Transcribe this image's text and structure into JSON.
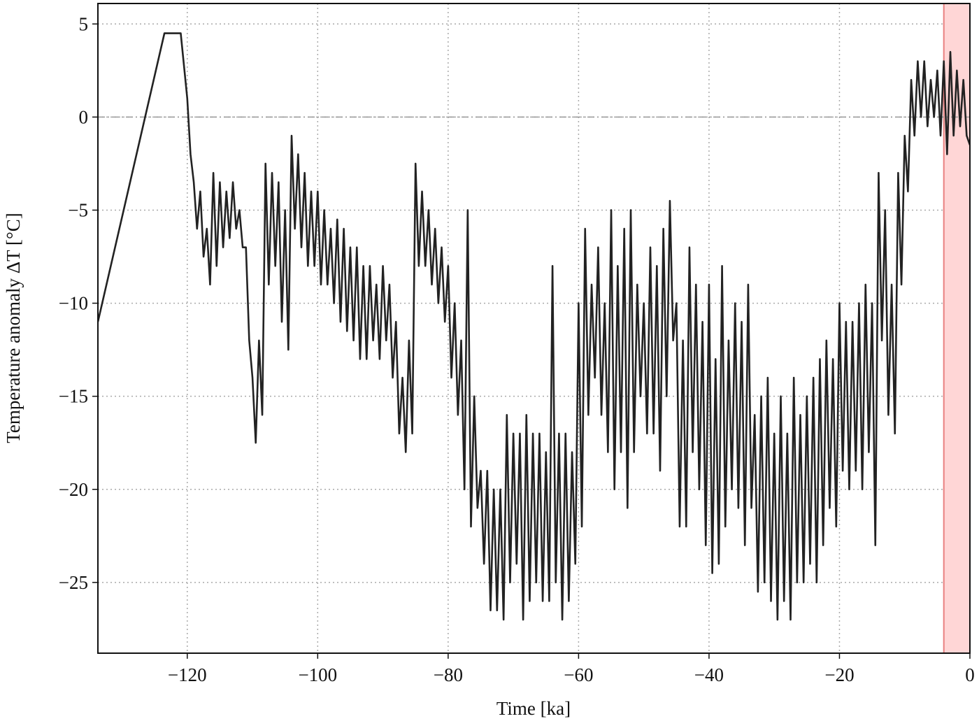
{
  "chart_data": {
    "type": "line",
    "xlabel": "Time [ka]",
    "ylabel": "Temperature anomaly ΔT [°C]",
    "xlim": [
      -133.7,
      0
    ],
    "ylim": [
      -28.8,
      6.1
    ],
    "xticks": [
      {
        "value": -120,
        "label": "−120"
      },
      {
        "value": -100,
        "label": "−100"
      },
      {
        "value": -80,
        "label": "−80"
      },
      {
        "value": -60,
        "label": "−60"
      },
      {
        "value": -40,
        "label": "−40"
      },
      {
        "value": -20,
        "label": "−20"
      },
      0
    ],
    "yticks": [
      5,
      0,
      {
        "value": -5,
        "label": "−5"
      },
      {
        "value": -10,
        "label": "−10"
      },
      {
        "value": -15,
        "label": "−15"
      },
      {
        "value": -20,
        "label": "−20"
      },
      {
        "value": -25,
        "label": "−25"
      }
    ],
    "grid": true,
    "hline": 0,
    "hline_color": "#999999",
    "highlight_span": [
      -4,
      0
    ],
    "highlight_color": "#ffd6d6",
    "highlight_edge_color": "#e88080",
    "series": [
      {
        "color": "#222222",
        "x": [
          -133.7,
          -123.5,
          -121,
          -120,
          -119.5,
          -119,
          -118.5,
          -118,
          -117.5,
          -117,
          -116.5,
          -116,
          -115.5,
          -115,
          -114.5,
          -114,
          -113.5,
          -113,
          -112.5,
          -112,
          -111.5,
          -111,
          -110.5,
          -110,
          -109.5,
          -109,
          -108.5,
          -108,
          -107.5,
          -107,
          -106.5,
          -106,
          -105.5,
          -105,
          -104.5,
          -104,
          -103.5,
          -103,
          -102.5,
          -102,
          -101.5,
          -101,
          -100.5,
          -100,
          -99.5,
          -99,
          -98.5,
          -98,
          -97.5,
          -97,
          -96.5,
          -96,
          -95.5,
          -95,
          -94.5,
          -94,
          -93.5,
          -93,
          -92.5,
          -92,
          -91.5,
          -91,
          -90.5,
          -90,
          -89.5,
          -89,
          -88.5,
          -88,
          -87.5,
          -87,
          -86.5,
          -86,
          -85.5,
          -85,
          -84.5,
          -84,
          -83.5,
          -83,
          -82.5,
          -82,
          -81.5,
          -81,
          -80.5,
          -80,
          -79.5,
          -79,
          -78.5,
          -78,
          -77.5,
          -77,
          -76.5,
          -76,
          -75.5,
          -75,
          -74.5,
          -74,
          -73.5,
          -73,
          -72.5,
          -72,
          -71.5,
          -71,
          -70.5,
          -70,
          -69.5,
          -69,
          -68.5,
          -68,
          -67.5,
          -67,
          -66.5,
          -66,
          -65.5,
          -65,
          -64.5,
          -64,
          -63.5,
          -63,
          -62.5,
          -62,
          -61.5,
          -61,
          -60.5,
          -60,
          -59.5,
          -59,
          -58.5,
          -58,
          -57.5,
          -57,
          -56.5,
          -56,
          -55.5,
          -55,
          -54.5,
          -54,
          -53.5,
          -53,
          -52.5,
          -52,
          -51.5,
          -51,
          -50.5,
          -50,
          -49.5,
          -49,
          -48.5,
          -48,
          -47.5,
          -47,
          -46.5,
          -46,
          -45.5,
          -45,
          -44.5,
          -44,
          -43.5,
          -43,
          -42.5,
          -42,
          -41.5,
          -41,
          -40.5,
          -40,
          -39.5,
          -39,
          -38.5,
          -38,
          -37.5,
          -37,
          -36.5,
          -36,
          -35.5,
          -35,
          -34.5,
          -34,
          -33.5,
          -33,
          -32.5,
          -32,
          -31.5,
          -31,
          -30.5,
          -30,
          -29.5,
          -29,
          -28.5,
          -28,
          -27.5,
          -27,
          -26.5,
          -26,
          -25.5,
          -25,
          -24.5,
          -24,
          -23.5,
          -23,
          -22.5,
          -22,
          -21.5,
          -21,
          -20.5,
          -20,
          -19.5,
          -19,
          -18.5,
          -18,
          -17.5,
          -17,
          -16.5,
          -16,
          -15.5,
          -15,
          -14.5,
          -14,
          -13.5,
          -13,
          -12.5,
          -12,
          -11.5,
          -11,
          -10.5,
          -10,
          -9.5,
          -9,
          -8.5,
          -8,
          -7.5,
          -7,
          -6.5,
          -6,
          -5.5,
          -5,
          -4.5,
          -4,
          -3.5,
          -3,
          -2.5,
          -2,
          -1.5,
          -1,
          -0.5,
          0
        ],
        "values": [
          -11,
          4.5,
          4.5,
          1,
          -2,
          -3.5,
          -6,
          -4,
          -7.5,
          -6,
          -9,
          -3,
          -8,
          -3.5,
          -7,
          -4,
          -6.5,
          -3.5,
          -6,
          -5,
          -7,
          -7,
          -12,
          -14,
          -17.5,
          -12,
          -16,
          -2.5,
          -9,
          -3,
          -8,
          -3.5,
          -11,
          -5,
          -12.5,
          -1,
          -6,
          -2,
          -7,
          -3,
          -8,
          -4,
          -8,
          -4,
          -9,
          -5,
          -9,
          -6,
          -10,
          -5.5,
          -11,
          -6,
          -11.5,
          -7,
          -12,
          -7,
          -13,
          -8,
          -13,
          -8,
          -12,
          -9,
          -13,
          -8,
          -12,
          -9,
          -14,
          -11,
          -17,
          -14,
          -18,
          -12,
          -17,
          -2.5,
          -8,
          -4,
          -8,
          -5,
          -9,
          -6,
          -10,
          -7,
          -11,
          -8,
          -14,
          -10,
          -16,
          -12,
          -20,
          -5,
          -22,
          -15,
          -21,
          -19,
          -24,
          -19,
          -26.5,
          -20,
          -26.5,
          -20,
          -27,
          -16,
          -25,
          -17,
          -24,
          -17,
          -27,
          -16,
          -26,
          -17,
          -25,
          -17,
          -26,
          -18,
          -26,
          -8,
          -25,
          -17,
          -27,
          -17,
          -26,
          -18,
          -24,
          -10,
          -22,
          -6,
          -16,
          -9,
          -14,
          -7,
          -16,
          -10,
          -18,
          -5,
          -20,
          -8,
          -18,
          -6,
          -21,
          -5,
          -18,
          -9,
          -15,
          -10,
          -17,
          -7,
          -17,
          -8,
          -19,
          -6,
          -15,
          -4.5,
          -12,
          -10,
          -22,
          -12,
          -22,
          -7,
          -18,
          -9,
          -20,
          -11,
          -23,
          -9,
          -24.5,
          -13,
          -24,
          -8,
          -22,
          -12,
          -20,
          -10,
          -21,
          -11,
          -23,
          -9,
          -21,
          -16,
          -25.5,
          -15,
          -25,
          -14,
          -26,
          -17,
          -27,
          -15,
          -26,
          -17,
          -27,
          -14,
          -25,
          -16,
          -25,
          -15,
          -24,
          -14,
          -25,
          -13,
          -23,
          -12,
          -21,
          -13,
          -22,
          -10,
          -19,
          -11,
          -20,
          -11,
          -19,
          -10,
          -20,
          -9,
          -18,
          -10,
          -23,
          -3,
          -12,
          -5,
          -16,
          -9,
          -17,
          -3,
          -9,
          -1,
          -4,
          2,
          -1,
          3,
          0,
          3,
          -0.5,
          2,
          0,
          2.5,
          -1,
          3,
          -2,
          3.5,
          -1,
          2.5,
          -0.5,
          2,
          -1,
          -1.5
        ]
      }
    ]
  }
}
